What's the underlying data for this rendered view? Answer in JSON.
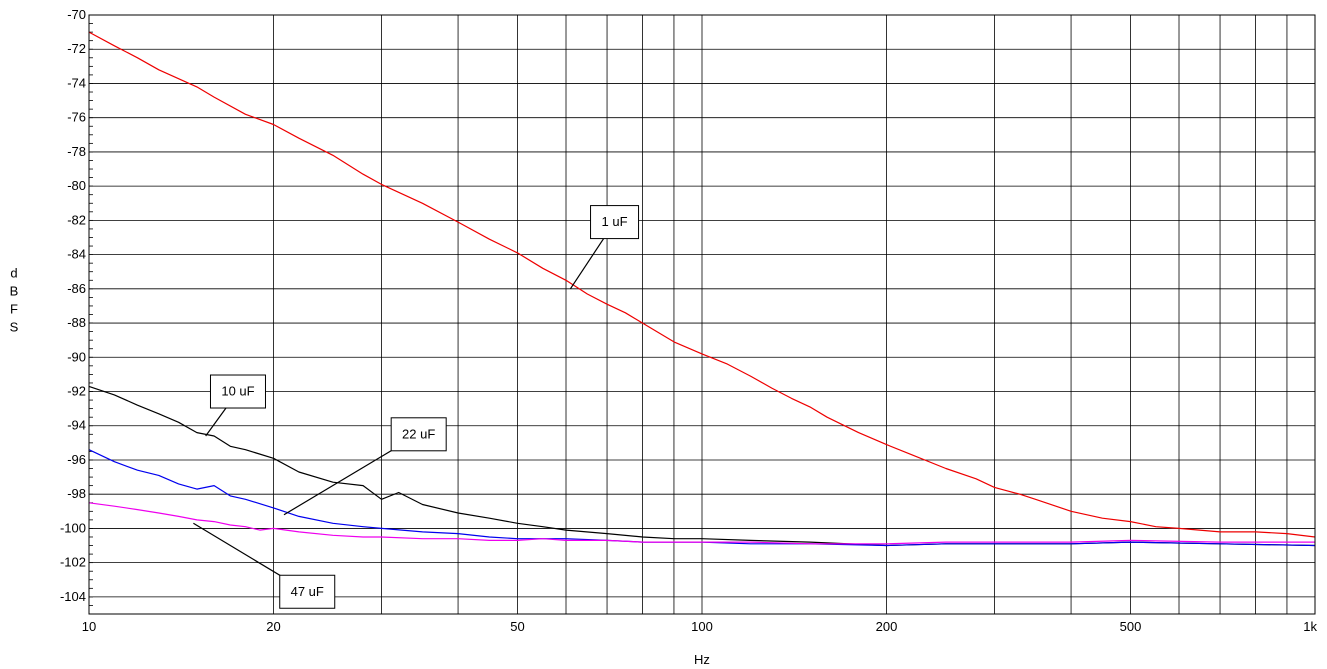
{
  "chart_data": {
    "type": "line",
    "title": "",
    "xlabel": "Hz",
    "ylabel": "dBFS",
    "x_scale": "log",
    "xlim": [
      10,
      1000
    ],
    "ylim": [
      -105,
      -70
    ],
    "grid": true,
    "x_major_ticks": [
      {
        "value": 10,
        "label": "10"
      },
      {
        "value": 20,
        "label": "20"
      },
      {
        "value": 50,
        "label": "50"
      },
      {
        "value": 100,
        "label": "100"
      },
      {
        "value": 200,
        "label": "200"
      },
      {
        "value": 500,
        "label": "500"
      },
      {
        "value": 1000,
        "label": "1k"
      }
    ],
    "x_minor_gridlines": [
      30,
      40,
      60,
      70,
      80,
      90,
      300,
      400,
      600,
      700,
      800,
      900
    ],
    "y_ticks": [
      {
        "value": -70,
        "label": "-70"
      },
      {
        "value": -72,
        "label": "-72"
      },
      {
        "value": -74,
        "label": "-74"
      },
      {
        "value": -76,
        "label": "-76"
      },
      {
        "value": -78,
        "label": "-78"
      },
      {
        "value": -80,
        "label": "-80"
      },
      {
        "value": -82,
        "label": "-82"
      },
      {
        "value": -84,
        "label": "-84"
      },
      {
        "value": -86,
        "label": "-86"
      },
      {
        "value": -88,
        "label": "-88"
      },
      {
        "value": -90,
        "label": "-90"
      },
      {
        "value": -92,
        "label": "-92"
      },
      {
        "value": -94,
        "label": "-94"
      },
      {
        "value": -96,
        "label": "-96"
      },
      {
        "value": -98,
        "label": "-98"
      },
      {
        "value": -100,
        "label": "-100"
      },
      {
        "value": -102,
        "label": "-102"
      },
      {
        "value": -104,
        "label": "-104"
      }
    ],
    "series": [
      {
        "name": "1 uF",
        "color": "#ee0000",
        "x": [
          10,
          11,
          12,
          13,
          15,
          16,
          18,
          20,
          22,
          25,
          28,
          30,
          35,
          40,
          45,
          50,
          55,
          60,
          65,
          70,
          75,
          80,
          90,
          100,
          110,
          120,
          130,
          140,
          150,
          160,
          180,
          200,
          220,
          250,
          280,
          300,
          330,
          350,
          400,
          450,
          500,
          550,
          600,
          700,
          800,
          900,
          1000
        ],
        "y": [
          -71.0,
          -71.8,
          -72.5,
          -73.2,
          -74.2,
          -74.8,
          -75.8,
          -76.4,
          -77.2,
          -78.2,
          -79.3,
          -79.9,
          -81.0,
          -82.1,
          -83.1,
          -83.9,
          -84.8,
          -85.5,
          -86.3,
          -86.9,
          -87.4,
          -88.0,
          -89.1,
          -89.8,
          -90.4,
          -91.1,
          -91.8,
          -92.4,
          -92.9,
          -93.5,
          -94.4,
          -95.1,
          -95.7,
          -96.5,
          -97.1,
          -97.6,
          -98.0,
          -98.3,
          -99.0,
          -99.4,
          -99.6,
          -99.9,
          -100.0,
          -100.2,
          -100.2,
          -100.3,
          -100.5
        ]
      },
      {
        "name": "10 uF",
        "color": "#000000",
        "x": [
          10,
          11,
          12,
          13,
          14,
          15,
          16,
          17,
          18,
          20,
          22,
          25,
          28,
          30,
          32,
          35,
          40,
          45,
          50,
          55,
          60,
          70,
          80,
          90,
          100,
          120,
          150,
          200,
          250,
          300,
          400,
          500,
          700,
          1000
        ],
        "y": [
          -91.7,
          -92.2,
          -92.8,
          -93.3,
          -93.8,
          -94.4,
          -94.6,
          -95.2,
          -95.4,
          -95.9,
          -96.7,
          -97.3,
          -97.5,
          -98.3,
          -97.9,
          -98.6,
          -99.1,
          -99.4,
          -99.7,
          -99.9,
          -100.1,
          -100.3,
          -100.5,
          -100.6,
          -100.6,
          -100.7,
          -100.8,
          -101.0,
          -100.9,
          -100.9,
          -100.9,
          -100.8,
          -100.9,
          -101.0
        ]
      },
      {
        "name": "22 uF",
        "color": "#0000ee",
        "x": [
          10,
          11,
          12,
          13,
          14,
          15,
          16,
          17,
          18,
          20,
          22,
          25,
          28,
          30,
          35,
          40,
          45,
          50,
          55,
          60,
          70,
          80,
          90,
          100,
          120,
          150,
          200,
          250,
          300,
          400,
          500,
          700,
          1000
        ],
        "y": [
          -95.4,
          -96.1,
          -96.6,
          -96.9,
          -97.4,
          -97.7,
          -97.5,
          -98.1,
          -98.3,
          -98.8,
          -99.3,
          -99.7,
          -99.9,
          -100.0,
          -100.2,
          -100.3,
          -100.5,
          -100.6,
          -100.6,
          -100.6,
          -100.7,
          -100.8,
          -100.8,
          -100.8,
          -100.9,
          -100.9,
          -101.0,
          -100.9,
          -100.9,
          -100.9,
          -100.8,
          -100.9,
          -101.0
        ]
      },
      {
        "name": "47 uF",
        "color": "#ee00ee",
        "x": [
          10,
          11,
          12,
          13,
          14,
          15,
          16,
          17,
          18,
          19,
          20,
          22,
          25,
          28,
          30,
          35,
          40,
          45,
          50,
          55,
          60,
          70,
          80,
          90,
          100,
          120,
          150,
          200,
          250,
          300,
          400,
          500,
          700,
          1000
        ],
        "y": [
          -98.5,
          -98.7,
          -98.9,
          -99.1,
          -99.3,
          -99.5,
          -99.6,
          -99.8,
          -99.9,
          -100.1,
          -100.0,
          -100.2,
          -100.4,
          -100.5,
          -100.5,
          -100.6,
          -100.6,
          -100.7,
          -100.7,
          -100.6,
          -100.7,
          -100.7,
          -100.8,
          -100.8,
          -100.8,
          -100.8,
          -100.9,
          -100.9,
          -100.8,
          -100.8,
          -100.8,
          -100.7,
          -100.8,
          -100.8
        ]
      }
    ],
    "annotations": [
      {
        "text": "1 uF",
        "series": "1 uF",
        "box_at": {
          "x": 72,
          "y": -82.1
        },
        "point_to": {
          "x": 61,
          "y": -86.0
        }
      },
      {
        "text": "10 uF",
        "series": "10 uF",
        "box_at": {
          "x": 17.5,
          "y": -92.0
        },
        "point_to": {
          "x": 15.5,
          "y": -94.6
        }
      },
      {
        "text": "22 uF",
        "series": "22 uF",
        "box_at": {
          "x": 34.5,
          "y": -94.5
        },
        "point_to": {
          "x": 20.8,
          "y": -99.2
        }
      },
      {
        "text": "47 uF",
        "series": "47 uF",
        "box_at": {
          "x": 22.7,
          "y": -103.7
        },
        "point_to": {
          "x": 14.8,
          "y": -99.7
        }
      }
    ]
  }
}
